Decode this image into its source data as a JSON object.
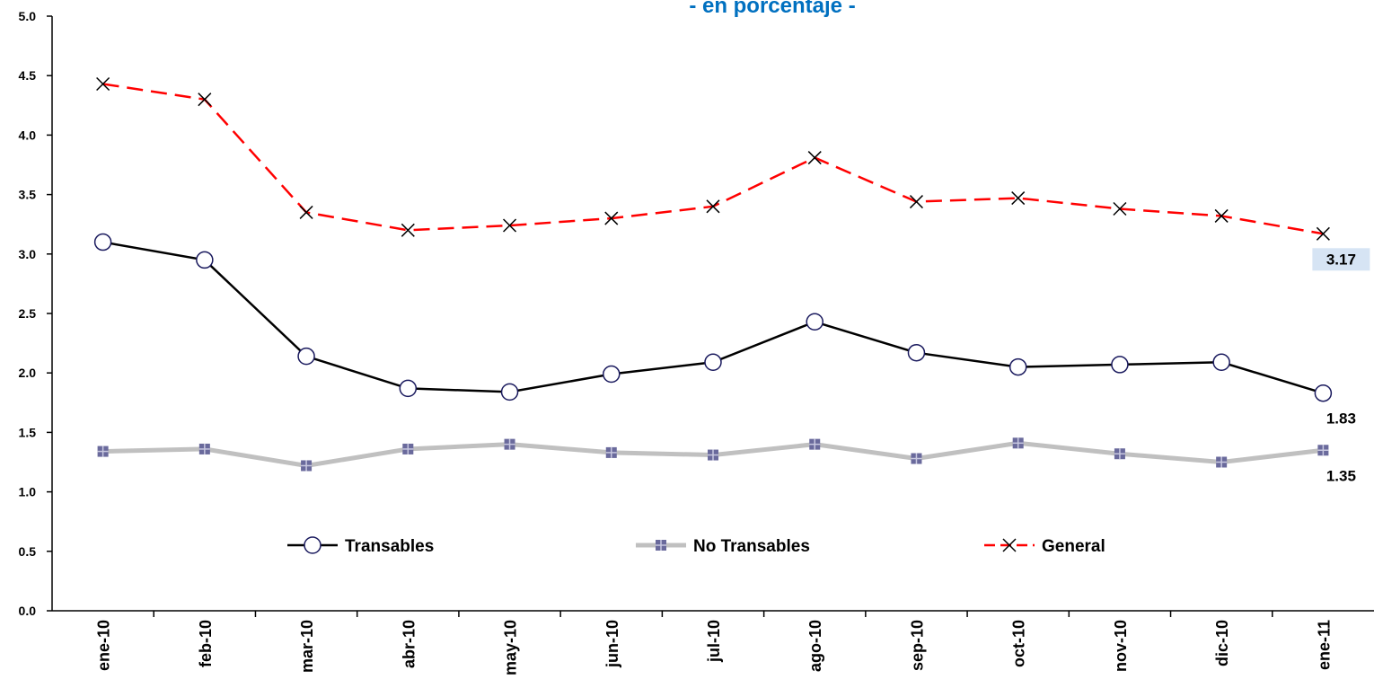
{
  "chart_data": {
    "type": "line",
    "title": "- en porcentaje -",
    "categories": [
      "ene-10",
      "feb-10",
      "mar-10",
      "abr-10",
      "may-10",
      "jun-10",
      "jul-10",
      "ago-10",
      "sep-10",
      "oct-10",
      "nov-10",
      "dic-10",
      "ene-11"
    ],
    "series": [
      {
        "name": "Transables",
        "color": "#000000",
        "marker": "circle",
        "values": [
          3.1,
          2.95,
          2.14,
          1.87,
          1.84,
          1.99,
          2.09,
          2.43,
          2.17,
          2.05,
          2.07,
          2.09,
          1.83
        ]
      },
      {
        "name": "No Transables",
        "color": "#c0c0c0",
        "marker": "square",
        "values": [
          1.34,
          1.36,
          1.22,
          1.36,
          1.4,
          1.33,
          1.31,
          1.4,
          1.28,
          1.41,
          1.32,
          1.25,
          1.35
        ]
      },
      {
        "name": "General",
        "color": "#ff0000",
        "marker": "x",
        "dashed": true,
        "values": [
          4.43,
          4.3,
          3.35,
          3.2,
          3.24,
          3.3,
          3.4,
          3.81,
          3.44,
          3.47,
          3.38,
          3.32,
          3.17
        ]
      }
    ],
    "ylim": [
      0,
      5
    ],
    "yticks": [
      {
        "value": 0,
        "label": "0.0"
      },
      0.5,
      {
        "value": 1,
        "label": "1.0"
      },
      1.5,
      {
        "value": 2,
        "label": "2.0"
      },
      2.5,
      {
        "value": 3,
        "label": "3.0"
      },
      3.5,
      {
        "value": 4,
        "label": "4.0"
      },
      4.5,
      {
        "value": 5,
        "label": "5.0"
      }
    ],
    "grid": false,
    "legend": "bottom"
  }
}
